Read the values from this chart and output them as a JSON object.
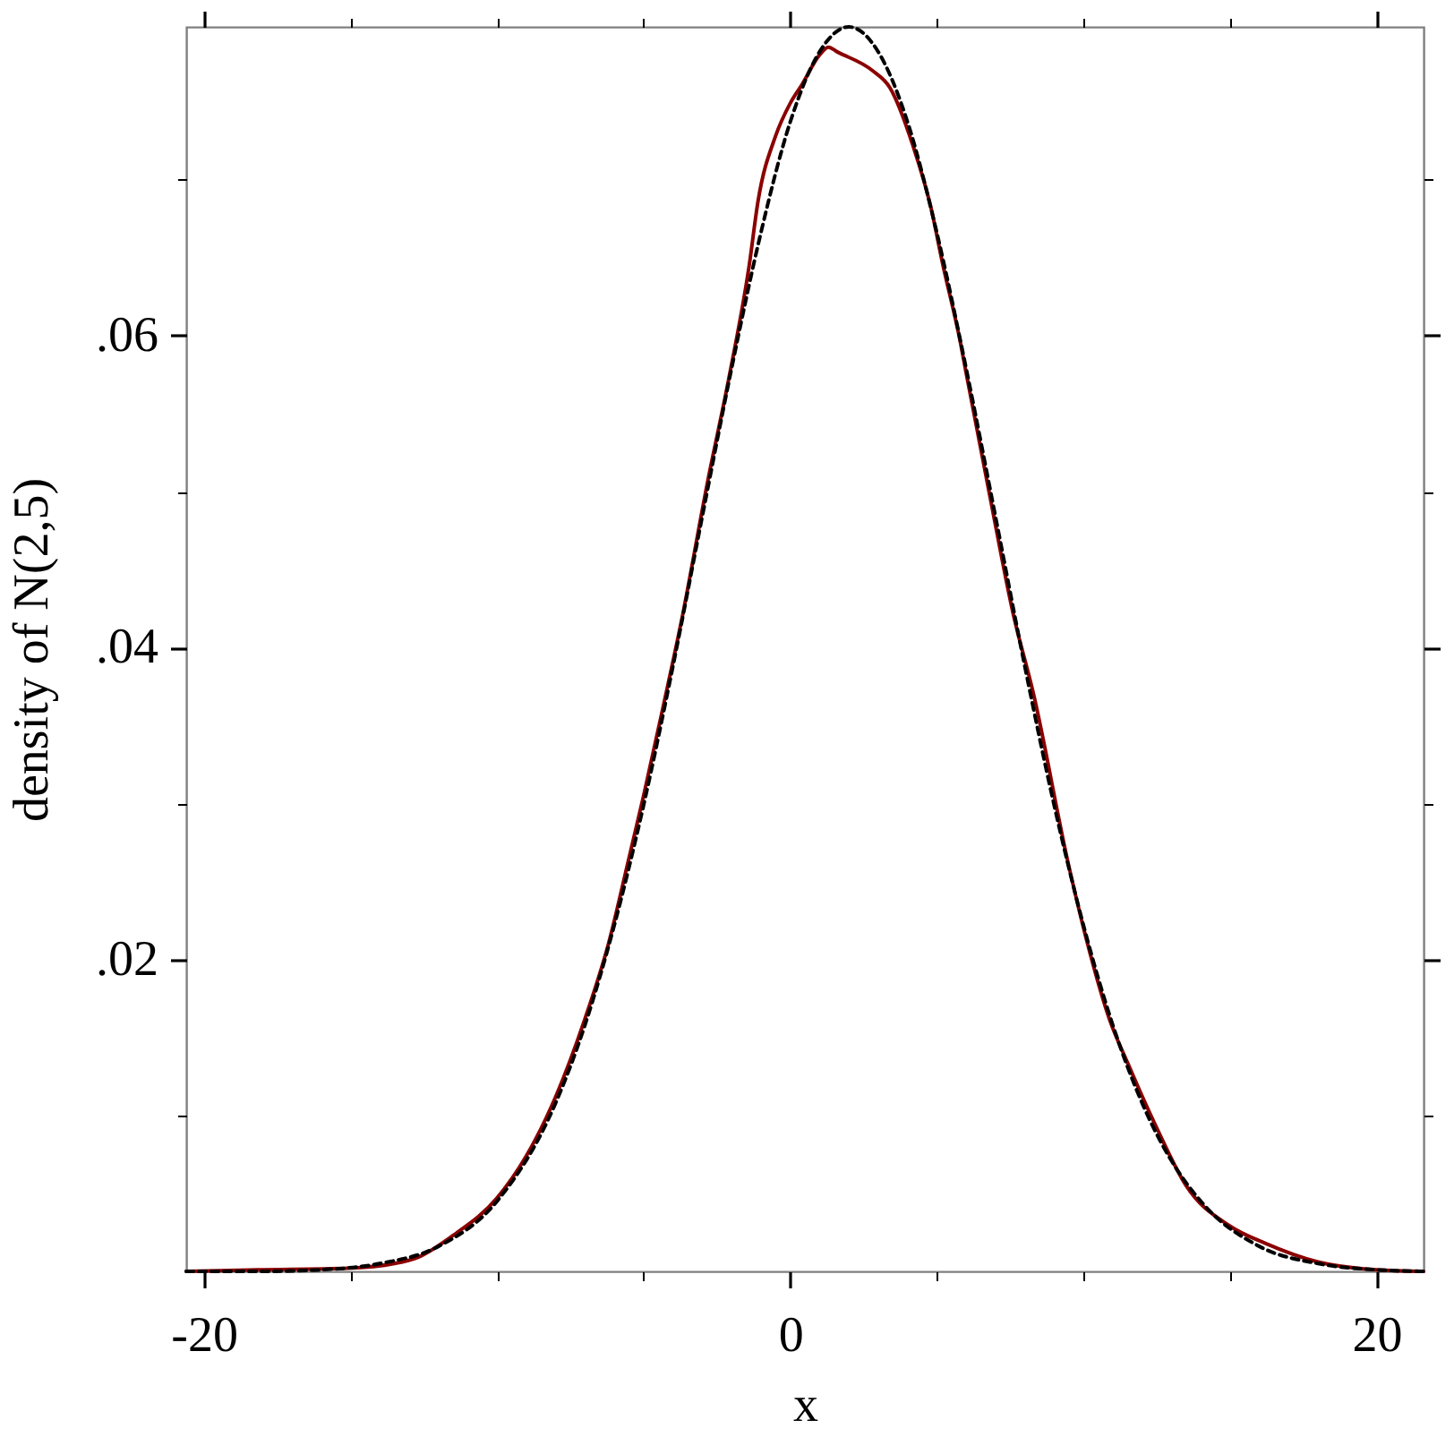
{
  "chart_data": {
    "type": "line",
    "xlabel": "x",
    "ylabel": "density of N(2,5)",
    "xlim": [
      -20.6,
      21.6
    ],
    "ylim": [
      0,
      0.0798
    ],
    "xticks": [
      -20,
      {
        "value": -15,
        "label": null
      },
      {
        "value": -10,
        "label": null
      },
      {
        "value": -5,
        "label": null
      },
      0,
      {
        "value": 5,
        "label": null
      },
      {
        "value": 10,
        "label": null
      },
      {
        "value": 15,
        "label": null
      },
      20
    ],
    "yticks": [
      {
        "value": 0.01,
        "label": null
      },
      {
        "value": 0.02,
        "label": ".02"
      },
      {
        "value": 0.03,
        "label": null
      },
      {
        "value": 0.04,
        "label": ".04"
      },
      {
        "value": 0.05,
        "label": null
      },
      {
        "value": 0.06,
        "label": ".06"
      },
      {
        "value": 0.07,
        "label": null
      }
    ],
    "grid": false,
    "series": [
      {
        "color": "#8b0000",
        "line_style": "solid",
        "x": [
          -20.6,
          -18.2,
          -15.1,
          -13.5,
          -12.7,
          -11.5,
          -10,
          -9,
          -8,
          -7,
          -6.2,
          -5.5,
          -5,
          -4.3,
          -3.7,
          -2.8,
          -2.1,
          -1.4,
          -1.1,
          -0.5,
          0,
          0.4,
          1,
          1.3,
          1.6,
          2.8,
          3.4,
          4.2,
          4.8,
          5.2,
          5.8,
          6,
          6.8,
          7.6,
          8.3,
          9.5,
          10.1,
          10.9,
          11.5,
          12.5,
          13.5,
          15,
          16.2,
          18,
          20,
          21.6
        ],
        "values": [
          0,
          0.0001,
          0.0002,
          0.0005,
          0.0009,
          0.0023,
          0.0047,
          0.0074,
          0.0112,
          0.0162,
          0.021,
          0.0265,
          0.0305,
          0.0365,
          0.0418,
          0.0508,
          0.0572,
          0.0645,
          0.0686,
          0.0728,
          0.0749,
          0.0761,
          0.078,
          0.0785,
          0.0782,
          0.077,
          0.0759,
          0.0721,
          0.0682,
          0.0646,
          0.0596,
          0.0576,
          0.0498,
          0.0422,
          0.037,
          0.026,
          0.0213,
          0.0161,
          0.0134,
          0.0092,
          0.0055,
          0.0029,
          0.0018,
          0.0006,
          0.0001,
          0
        ]
      },
      {
        "color": "#000000",
        "line_style": "dashed",
        "x": [
          -20.6,
          -18,
          -16,
          -14,
          -12,
          -10,
          -8,
          -7,
          -6,
          -5,
          -4,
          -3,
          -2,
          -1,
          0,
          1,
          2,
          3,
          4,
          5,
          6,
          7,
          8,
          9,
          10,
          11,
          12,
          13,
          14,
          16,
          18,
          20,
          21.6
        ],
        "values": [
          0,
          0,
          0.0001,
          0.0005,
          0.0016,
          0.0045,
          0.0108,
          0.0158,
          0.0222,
          0.0299,
          0.0388,
          0.0484,
          0.0579,
          0.0666,
          0.0737,
          0.0782,
          0.0798,
          0.0782,
          0.0737,
          0.0666,
          0.0579,
          0.0484,
          0.0388,
          0.0299,
          0.0222,
          0.0158,
          0.0108,
          0.0071,
          0.0045,
          0.0016,
          0.0005,
          0.0001,
          0
        ]
      }
    ]
  }
}
